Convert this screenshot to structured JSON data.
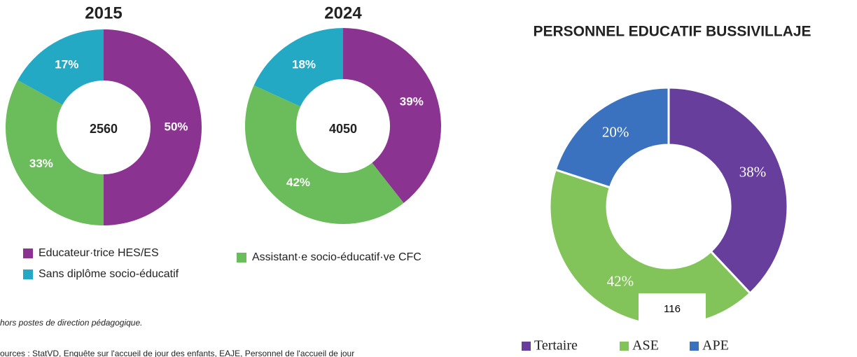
{
  "chart_data": [
    {
      "type": "pie",
      "title": "2015",
      "center_label": "2560",
      "categories": [
        "Educateur·trice HES/ES",
        "Assistant·e socio-éducatif·ve CFC",
        "Sans diplôme socio-éducatif"
      ],
      "values": [
        50,
        33,
        17
      ],
      "value_labels": [
        "50%",
        "33%",
        "17%"
      ],
      "colors": [
        "#8b3391",
        "#6abd5a",
        "#23a9c4"
      ]
    },
    {
      "type": "pie",
      "title": "2024",
      "center_label": "4050",
      "values": [
        39,
        42,
        18
      ],
      "value_labels": [
        "39%",
        "42%",
        "18%"
      ],
      "colors": [
        "#8b3391",
        "#6abd5a",
        "#23a9c4"
      ]
    },
    {
      "type": "pie",
      "title": "PERSONNEL EDUCATIF BUSSIVILLAJE",
      "annotation": "116",
      "categories": [
        "Tertaire",
        "ASE",
        "APE"
      ],
      "values": [
        38,
        42,
        20
      ],
      "value_labels": [
        "38%",
        "42%",
        "20%"
      ],
      "colors": [
        "#673e9c",
        "#82c45a",
        "#3b72c0"
      ]
    }
  ],
  "notes": [
    "hors postes de direction pédagogique.",
    "ources : StatVD, Enquête sur l'accueil de jour des enfants, EAJE, Personnel de l'accueil de jour"
  ]
}
